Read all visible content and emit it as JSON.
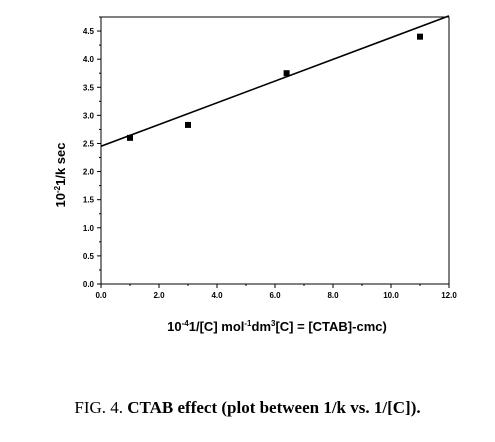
{
  "chart_data": {
    "type": "scatter",
    "xlabel": "10-41/[C] mol-1dm3[C] = [CTAB]-cmc)",
    "ylabel": "10-21/k sec",
    "xlim": [
      0,
      12
    ],
    "ylim": [
      0,
      4.75
    ],
    "xticks": [
      "0.0",
      "2.0",
      "4.0",
      "6.0",
      "8.0",
      "10.0",
      "12.0"
    ],
    "yticks": [
      "0.0",
      "0.5",
      "1.0",
      "1.5",
      "2.0",
      "2.5",
      "3.0",
      "3.5",
      "4.0",
      "4.5"
    ],
    "grid": false,
    "points": [
      {
        "x": 1.0,
        "y": 2.6
      },
      {
        "x": 3.0,
        "y": 2.83
      },
      {
        "x": 6.4,
        "y": 3.75
      },
      {
        "x": 11.0,
        "y": 4.4
      }
    ],
    "fit_line": {
      "x": [
        0,
        12.0
      ],
      "y": [
        2.45,
        4.77
      ]
    }
  },
  "caption": {
    "prefix": "FIG. 4. ",
    "text": "CTAB effect (plot between 1/k vs. 1/[C])."
  }
}
